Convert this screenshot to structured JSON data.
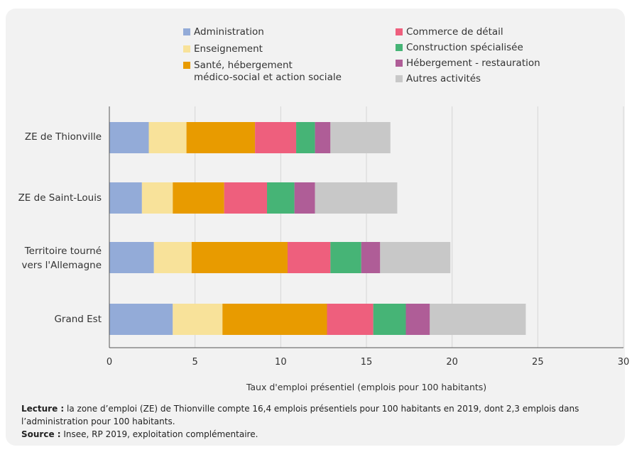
{
  "chart_data": {
    "type": "bar",
    "orientation": "horizontal",
    "stacked": true,
    "categories": [
      "ZE de Thionville",
      "ZE de Saint-Louis",
      "Territoire tourné vers l'Allemagne",
      "Grand Est"
    ],
    "series": [
      {
        "name": "Administration",
        "color": "#93abd8",
        "values": [
          2.3,
          1.9,
          2.6,
          3.7
        ]
      },
      {
        "name": "Enseignement",
        "color": "#f8e29a",
        "values": [
          2.2,
          1.8,
          2.2,
          2.9
        ]
      },
      {
        "name": "Santé, hébergement médico-social et action sociale",
        "color": "#e89b00",
        "values": [
          4.0,
          3.0,
          5.6,
          6.1
        ]
      },
      {
        "name": "Commerce de détail",
        "color": "#ee5f7d",
        "values": [
          2.4,
          2.5,
          2.5,
          2.7
        ]
      },
      {
        "name": "Construction spécialisée",
        "color": "#46b476",
        "values": [
          1.1,
          1.6,
          1.8,
          1.9
        ]
      },
      {
        "name": "Hébergement - restauration",
        "color": "#af5d97",
        "values": [
          0.9,
          1.2,
          1.1,
          1.4
        ]
      },
      {
        "name": "Autres activités",
        "color": "#c8c8c8",
        "values": [
          3.5,
          4.8,
          4.1,
          5.6
        ]
      }
    ],
    "xlim": [
      0,
      30
    ],
    "xticks": [
      0,
      5,
      10,
      15,
      20,
      25,
      30
    ],
    "xlabel": "Taux d'emploi présentiel (emplois pour 100 habitants)",
    "grid": "vertical",
    "legend": "top"
  },
  "legend": {
    "col1": [
      {
        "label": "Administration",
        "color": "#93abd8"
      },
      {
        "label": "Enseignement",
        "color": "#f8e29a"
      },
      {
        "label": "Santé, hébergement",
        "label2": "médico-social et action sociale",
        "color": "#e89b00"
      }
    ],
    "col2": [
      {
        "label": "Commerce de détail",
        "color": "#ee5f7d"
      },
      {
        "label": "Construction spécialisée",
        "color": "#46b476"
      },
      {
        "label": "Hébergement - restauration",
        "color": "#af5d97"
      },
      {
        "label": "Autres activités",
        "color": "#c8c8c8"
      }
    ]
  },
  "ylabels": {
    "c0": "ZE de Thionville",
    "c1": "ZE de Saint-Louis",
    "c2a": "Territoire tourné",
    "c2b": "vers l'Allemagne",
    "c3": "Grand Est"
  },
  "footnote": {
    "lecture_label": "Lecture :",
    "lecture_text": " la zone d’emploi (ZE) de Thionville compte 16,4 emplois présentiels pour 100 habitants en 2019, dont 2,3 emplois dans l’administration pour 100 habitants.",
    "source_label": "Source :",
    "source_text": " Insee, RP 2019, exploitation complémentaire."
  }
}
